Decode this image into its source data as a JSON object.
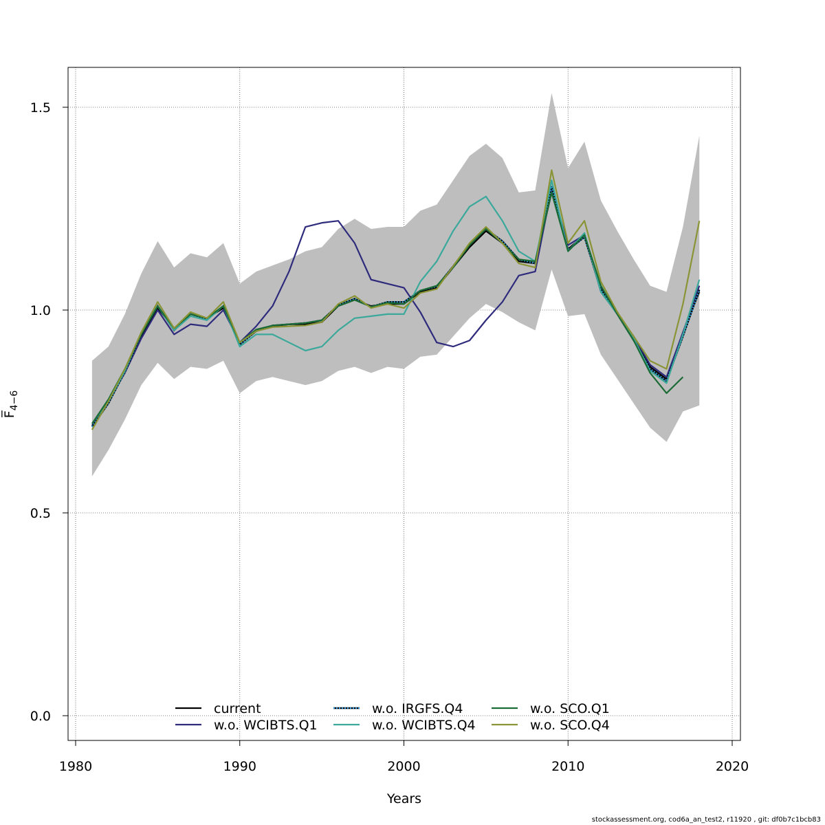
{
  "chart_data": {
    "type": "line",
    "xlabel": "Years",
    "ylabel": "F̅",
    "ylabel_subscript": "4−6",
    "xlim": [
      1980,
      2020
    ],
    "ylim": [
      0.0,
      1.6
    ],
    "x_ticks": [
      1980,
      1990,
      2000,
      2010,
      2020
    ],
    "y_ticks": [
      0.0,
      0.5,
      1.0,
      1.5
    ],
    "x_tick_labels": [
      "1980",
      "1990",
      "2000",
      "2010",
      "2020"
    ],
    "y_tick_labels": [
      "0.0",
      "0.5",
      "1.0",
      "1.5"
    ],
    "grid": true,
    "legend_position": "bottom-center",
    "band": {
      "color": "#bebebe",
      "x": [
        1981,
        1982,
        1983,
        1984,
        1985,
        1986,
        1987,
        1988,
        1989,
        1990,
        1991,
        1992,
        1993,
        1994,
        1995,
        1996,
        1997,
        1998,
        1999,
        2000,
        2001,
        2002,
        2003,
        2004,
        2005,
        2006,
        2007,
        2008,
        2009,
        2010,
        2011,
        2012,
        2013,
        2014,
        2015,
        2016,
        2017,
        2018
      ],
      "upper": [
        0.875,
        0.91,
        0.99,
        1.09,
        1.17,
        1.105,
        1.14,
        1.13,
        1.165,
        1.065,
        1.095,
        1.11,
        1.125,
        1.145,
        1.155,
        1.2,
        1.225,
        1.2,
        1.205,
        1.205,
        1.245,
        1.26,
        1.32,
        1.38,
        1.41,
        1.375,
        1.29,
        1.295,
        1.535,
        1.35,
        1.415,
        1.27,
        1.195,
        1.125,
        1.06,
        1.045,
        1.205,
        1.43
      ],
      "lower": [
        0.59,
        0.655,
        0.73,
        0.815,
        0.87,
        0.83,
        0.86,
        0.855,
        0.875,
        0.795,
        0.825,
        0.835,
        0.825,
        0.815,
        0.825,
        0.85,
        0.86,
        0.845,
        0.86,
        0.855,
        0.885,
        0.89,
        0.935,
        0.98,
        1.015,
        0.995,
        0.97,
        0.95,
        1.1,
        0.985,
        0.99,
        0.89,
        0.83,
        0.77,
        0.71,
        0.675,
        0.75,
        0.765
      ]
    },
    "series": [
      {
        "name": "current",
        "color": "#000000",
        "dashed": false,
        "x": [
          1981,
          1982,
          1983,
          1984,
          1985,
          1986,
          1987,
          1988,
          1989,
          1990,
          1991,
          1992,
          1993,
          1994,
          1995,
          1996,
          1997,
          1998,
          1999,
          2000,
          2001,
          2002,
          2003,
          2004,
          2005,
          2006,
          2007,
          2008,
          2009,
          2010,
          2011,
          2012,
          2013,
          2014,
          2015,
          2016,
          2017,
          2018
        ],
        "y": [
          0.715,
          0.775,
          0.85,
          0.935,
          1.005,
          0.955,
          0.99,
          0.98,
          1.005,
          0.915,
          0.95,
          0.96,
          0.965,
          0.965,
          0.97,
          1.01,
          1.025,
          1.01,
          1.015,
          1.015,
          1.045,
          1.055,
          1.105,
          1.155,
          1.195,
          1.165,
          1.12,
          1.115,
          1.29,
          1.15,
          1.185,
          1.055,
          0.995,
          0.93,
          0.86,
          0.83,
          0.945,
          1.045
        ]
      },
      {
        "name": "w.o. WCIBTS.Q1",
        "color": "#2e2a7c",
        "dashed": false,
        "x": [
          1981,
          1982,
          1983,
          1984,
          1985,
          1986,
          1987,
          1988,
          1989,
          1990,
          1991,
          1992,
          1993,
          1994,
          1995,
          1996,
          1997,
          1998,
          1999,
          2000,
          2001,
          2002,
          2003,
          2004,
          2005,
          2006,
          2007,
          2008,
          2009,
          2010,
          2011,
          2012,
          2013,
          2014,
          2015,
          2016,
          2017,
          2018
        ],
        "y": [
          0.715,
          0.775,
          0.845,
          0.93,
          1.0,
          0.94,
          0.965,
          0.96,
          1.0,
          0.92,
          0.96,
          1.01,
          1.095,
          1.205,
          1.215,
          1.22,
          1.165,
          1.075,
          1.065,
          1.055,
          0.995,
          0.92,
          0.91,
          0.925,
          0.975,
          1.02,
          1.085,
          1.095,
          1.3,
          1.16,
          1.185,
          1.045,
          0.99,
          0.935,
          0.865,
          0.835,
          0.945,
          1.06
        ]
      },
      {
        "name": "w.o. IRGFS.Q4",
        "color": "#2a8fd0",
        "dashed": true,
        "x": [
          1981,
          1982,
          1983,
          1984,
          1985,
          1986,
          1987,
          1988,
          1989,
          1990,
          1991,
          1992,
          1993,
          1994,
          1995,
          1996,
          1997,
          1998,
          1999,
          2000,
          2001,
          2002,
          2003,
          2004,
          2005,
          2006,
          2007,
          2008,
          2009,
          2010,
          2011,
          2012,
          2013,
          2014,
          2015,
          2016,
          2017,
          2018
        ],
        "y": [
          0.712,
          0.77,
          0.848,
          0.94,
          1.01,
          0.95,
          0.99,
          0.978,
          1.01,
          0.915,
          0.948,
          0.962,
          0.965,
          0.968,
          0.975,
          1.012,
          1.028,
          1.008,
          1.02,
          1.02,
          1.048,
          1.058,
          1.108,
          1.162,
          1.2,
          1.17,
          1.125,
          1.115,
          1.305,
          1.148,
          1.18,
          1.05,
          0.99,
          0.925,
          0.855,
          0.825,
          0.935,
          1.05
        ]
      },
      {
        "name": "w.o. WCIBTS.Q4",
        "color": "#3aa89a",
        "dashed": false,
        "x": [
          1981,
          1982,
          1983,
          1984,
          1985,
          1986,
          1987,
          1988,
          1989,
          1990,
          1991,
          1992,
          1993,
          1994,
          1995,
          1996,
          1997,
          1998,
          1999,
          2000,
          2001,
          2002,
          2003,
          2004,
          2005,
          2006,
          2007,
          2008,
          2009,
          2010,
          2011,
          2012,
          2013,
          2014,
          2015,
          2016,
          2017,
          2018
        ],
        "y": [
          0.72,
          0.775,
          0.85,
          0.945,
          1.01,
          0.95,
          0.985,
          0.975,
          1.01,
          0.91,
          0.94,
          0.94,
          0.92,
          0.9,
          0.91,
          0.95,
          0.98,
          0.985,
          0.99,
          0.99,
          1.07,
          1.12,
          1.195,
          1.255,
          1.28,
          1.22,
          1.145,
          1.12,
          1.32,
          1.145,
          1.19,
          1.045,
          0.99,
          0.93,
          0.85,
          0.82,
          0.94,
          1.075
        ]
      },
      {
        "name": "w.o. SCO.Q1",
        "color": "#1a6b36",
        "dashed": false,
        "x": [
          1981,
          1982,
          1983,
          1984,
          1985,
          1986,
          1987,
          1988,
          1989,
          1990,
          1991,
          1992,
          1993,
          1994,
          1995,
          1996,
          1997,
          1998,
          1999,
          2000,
          2001,
          2002,
          2003,
          2004,
          2005,
          2006,
          2007,
          2008,
          2009,
          2010,
          2011,
          2012,
          2013,
          2014,
          2015,
          2016,
          2017
        ],
        "y": [
          0.72,
          0.78,
          0.855,
          0.94,
          1.01,
          0.955,
          0.99,
          0.98,
          1.01,
          0.92,
          0.952,
          0.962,
          0.965,
          0.968,
          0.975,
          1.01,
          1.025,
          1.008,
          1.018,
          1.015,
          1.048,
          1.06,
          1.105,
          1.16,
          1.2,
          1.165,
          1.125,
          1.12,
          1.29,
          1.145,
          1.185,
          1.06,
          0.99,
          0.925,
          0.845,
          0.795,
          0.835
        ]
      },
      {
        "name": "w.o. SCO.Q4",
        "color": "#8a9435",
        "dashed": false,
        "x": [
          1981,
          1982,
          1983,
          1984,
          1985,
          1986,
          1987,
          1988,
          1989,
          1990,
          1991,
          1992,
          1993,
          1994,
          1995,
          1996,
          1997,
          1998,
          1999,
          2000,
          2001,
          2002,
          2003,
          2004,
          2005,
          2006,
          2007,
          2008,
          2009,
          2010,
          2011,
          2012,
          2013,
          2014,
          2015,
          2016,
          2017,
          2018
        ],
        "y": [
          0.705,
          0.775,
          0.855,
          0.945,
          1.02,
          0.955,
          0.995,
          0.98,
          1.02,
          0.92,
          0.948,
          0.958,
          0.96,
          0.962,
          0.97,
          1.015,
          1.035,
          1.005,
          1.015,
          1.005,
          1.042,
          1.052,
          1.108,
          1.165,
          1.205,
          1.165,
          1.115,
          1.105,
          1.345,
          1.165,
          1.22,
          1.07,
          0.995,
          0.935,
          0.875,
          0.855,
          1.015,
          1.22
        ]
      }
    ]
  },
  "footer": "stockassessment.org, cod6a_an_test2, r11920 , git: df0b7c1bcb83"
}
